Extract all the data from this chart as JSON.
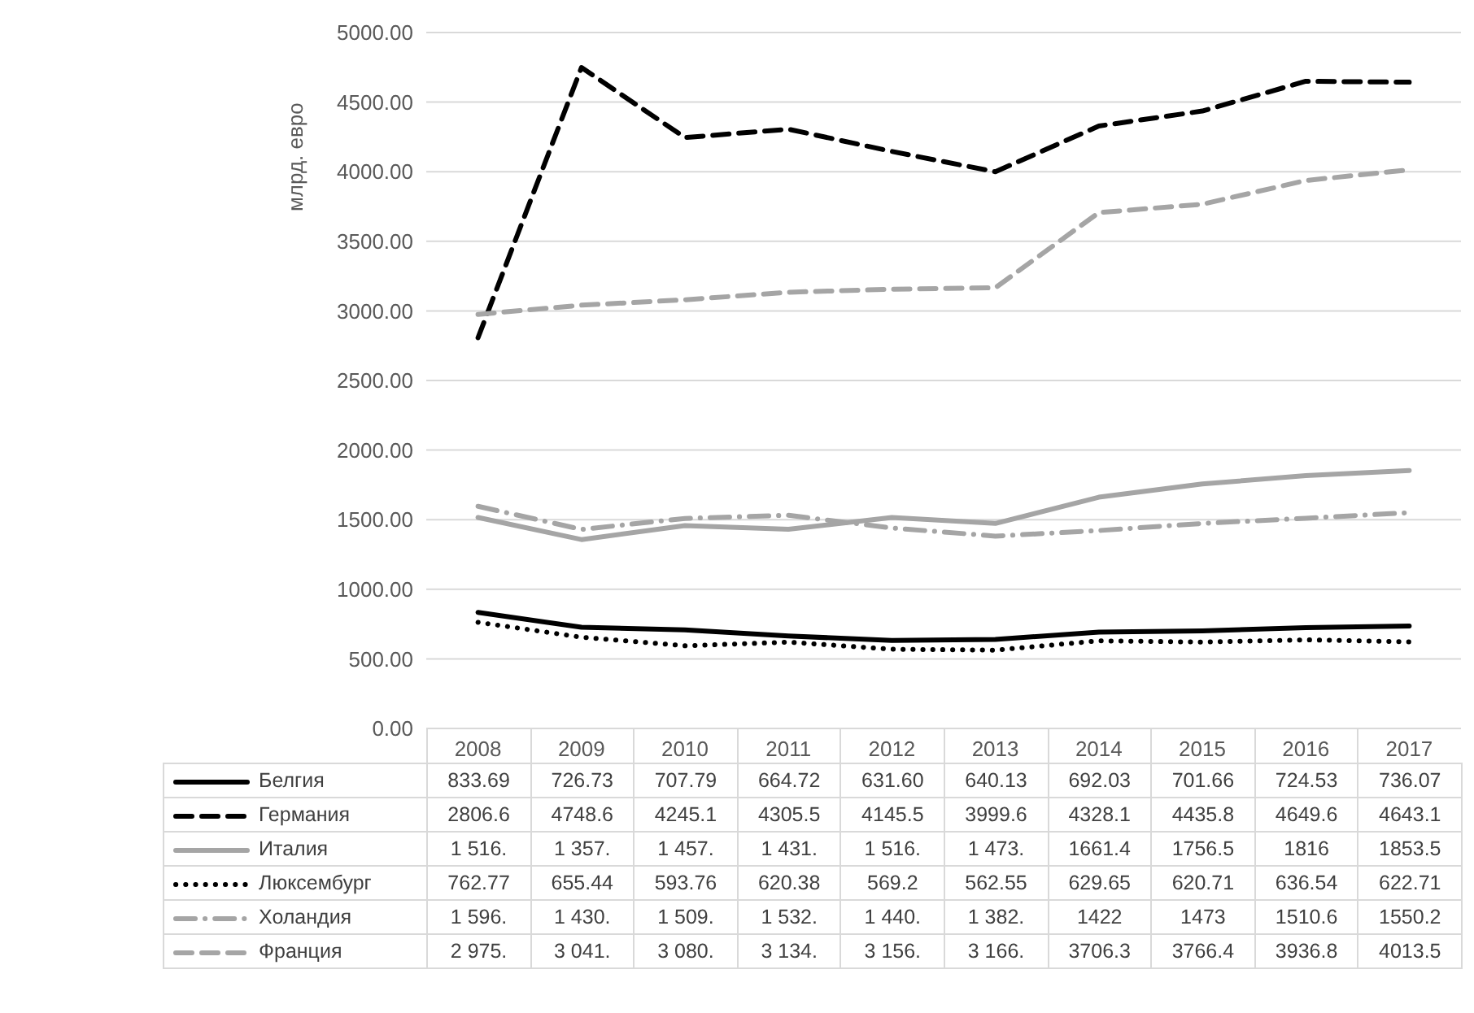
{
  "chart_data": {
    "type": "line",
    "ylabel": "млрд. евро",
    "categories": [
      "2008",
      "2009",
      "2010",
      "2011",
      "2012",
      "2013",
      "2014",
      "2015",
      "2016",
      "2017"
    ],
    "ylim": [
      0,
      5000
    ],
    "yticks": [
      {
        "value": 0,
        "label": "0.00"
      },
      {
        "value": 500,
        "label": "500.00"
      },
      {
        "value": 1000,
        "label": "1000.00"
      },
      {
        "value": 1500,
        "label": "1500.00"
      },
      {
        "value": 2000,
        "label": "2000.00"
      },
      {
        "value": 2500,
        "label": "2500.00"
      },
      {
        "value": 3000,
        "label": "3000.00"
      },
      {
        "value": 3500,
        "label": "3500.00"
      },
      {
        "value": 4000,
        "label": "4000.00"
      },
      {
        "value": 4500,
        "label": "4500.00"
      },
      {
        "value": 5000,
        "label": "5000.00"
      }
    ],
    "grid": "y",
    "legend": "bottom",
    "series": [
      {
        "name": "Белгия",
        "color": "#000000",
        "line_style": "solid",
        "values": [
          833.69,
          726.73,
          707.79,
          664.72,
          631.6,
          640.13,
          692.03,
          701.66,
          724.53,
          736.07
        ],
        "value_labels": [
          "833.69",
          "726.73",
          "707.79",
          "664.72",
          "631.60",
          "640.13",
          "692.03",
          "701.66",
          "724.53",
          "736.07"
        ]
      },
      {
        "name": "Германия",
        "color": "#000000",
        "line_style": "dashed",
        "values": [
          2806.6,
          4748.6,
          4245.1,
          4305.5,
          4145.5,
          3999.6,
          4328.1,
          4435.8,
          4649.6,
          4643.1
        ],
        "value_labels": [
          "2806.6",
          "4748.6",
          "4245.1",
          "4305.5",
          "4145.5",
          "3999.6",
          "4328.1",
          "4435.8",
          "4649.6",
          "4643.1"
        ]
      },
      {
        "name": "Италия",
        "color": "#a5a5a5",
        "line_style": "solid",
        "values": [
          1516,
          1357,
          1457,
          1431,
          1516,
          1473,
          1661.4,
          1756.5,
          1816,
          1853.5
        ],
        "value_labels": [
          "1 516.",
          "1 357.",
          "1 457.",
          "1 431.",
          "1 516.",
          "1 473.",
          "1661.4",
          "1756.5",
          "1816",
          "1853.5"
        ]
      },
      {
        "name": "Люксембург",
        "color": "#000000",
        "line_style": "dotted",
        "values": [
          762.77,
          655.44,
          593.76,
          620.38,
          569.2,
          562.55,
          629.65,
          620.71,
          636.54,
          622.71
        ],
        "value_labels": [
          "762.77",
          "655.44",
          "593.76",
          "620.38",
          "569.2",
          "562.55",
          "629.65",
          "620.71",
          "636.54",
          "622.71"
        ]
      },
      {
        "name": "Холандия",
        "color": "#a5a5a5",
        "line_style": "dashdot",
        "values": [
          1596,
          1430,
          1509,
          1532,
          1440,
          1382,
          1422,
          1473,
          1510.6,
          1550.2
        ],
        "value_labels": [
          "1 596.",
          "1 430.",
          "1 509.",
          "1 532.",
          "1 440.",
          "1 382.",
          "1422",
          "1473",
          "1510.6",
          "1550.2"
        ]
      },
      {
        "name": "Франция",
        "color": "#a5a5a5",
        "line_style": "dashed",
        "values": [
          2975,
          3041,
          3080,
          3134,
          3156,
          3166,
          3706.3,
          3766.4,
          3936.8,
          4013.5
        ],
        "value_labels": [
          "2 975.",
          "3 041.",
          "3 080.",
          "3 134.",
          "3 156.",
          "3 166.",
          "3706.3",
          "3766.4",
          "3936.8",
          "4013.5"
        ]
      }
    ]
  }
}
